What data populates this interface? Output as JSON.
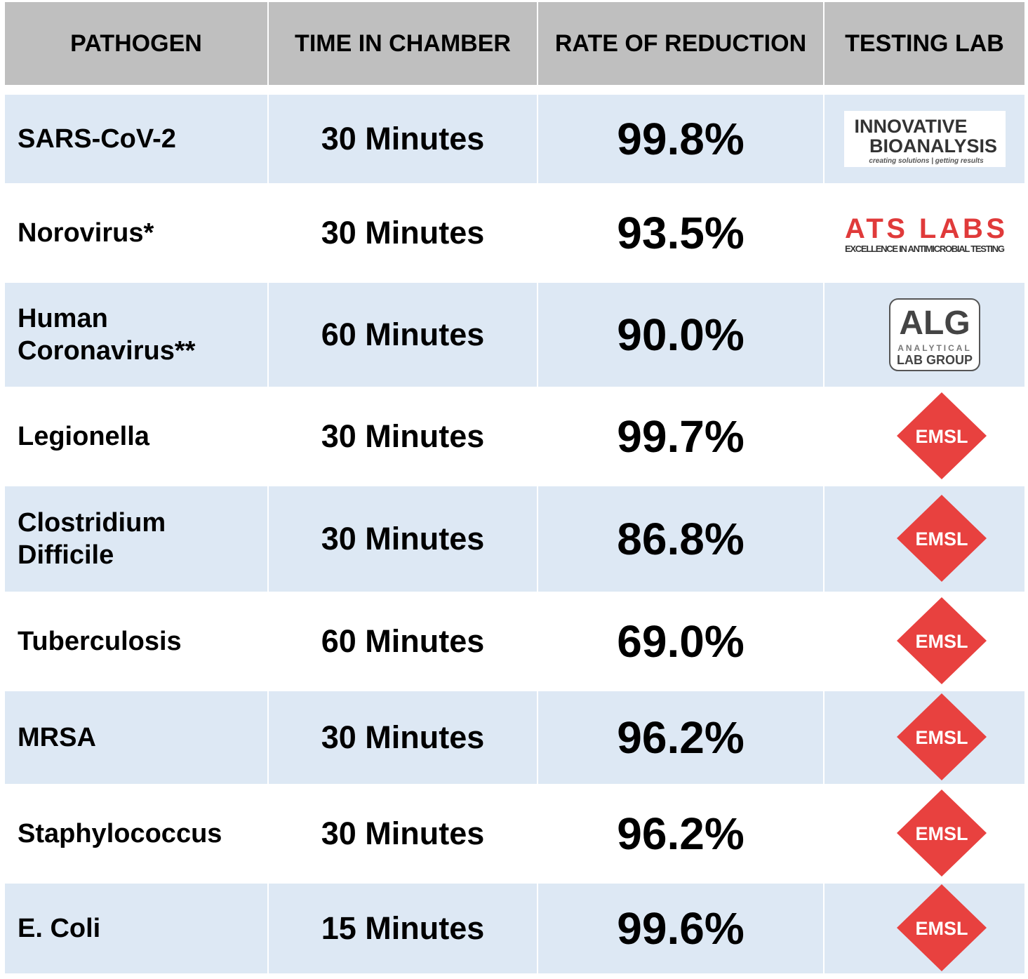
{
  "header": [
    "PATHOGEN",
    "TIME IN CHAMBER",
    "RATE OF REDUCTION",
    "TESTING LAB"
  ],
  "rows": [
    {
      "pathogen": "SARS-CoV-2",
      "time": "30 Minutes",
      "rate": "99.8%",
      "lab": {
        "line1": "INNOVATIVE",
        "line2": "BIOANALYSIS",
        "tagline": "creating solutions | getting results"
      }
    },
    {
      "pathogen": "Norovirus*",
      "time": "30 Minutes",
      "rate": "93.5%",
      "lab": {
        "mark": "ATS LABS",
        "tagline": "EXCELLENCE IN ANTIMICROBIAL TESTING"
      }
    },
    {
      "pathogen": "Human Coronavirus**",
      "time": "60 Minutes",
      "rate": "90.0%",
      "lab": {
        "mark": "ALG",
        "line1": "ANALYTICAL",
        "line2": "LAB GROUP"
      }
    },
    {
      "pathogen": "Legionella",
      "time": "30 Minutes",
      "rate": "99.7%",
      "lab": {
        "mark": "EMSL"
      }
    },
    {
      "pathogen": "Clostridium Difficile",
      "time": "30 Minutes",
      "rate": "86.8%",
      "lab": {
        "mark": "EMSL"
      }
    },
    {
      "pathogen": "Tuberculosis",
      "time": "60 Minutes",
      "rate": "69.0%",
      "lab": {
        "mark": "EMSL"
      }
    },
    {
      "pathogen": "MRSA",
      "time": "30 Minutes",
      "rate": "96.2%",
      "lab": {
        "mark": "EMSL"
      }
    },
    {
      "pathogen": "Staphylococcus",
      "time": "30 Minutes",
      "rate": "96.2%",
      "lab": {
        "mark": "EMSL"
      }
    },
    {
      "pathogen": "E. Coli",
      "time": "15 Minutes",
      "rate": "99.6%",
      "lab": {
        "mark": "EMSL"
      }
    }
  ]
}
